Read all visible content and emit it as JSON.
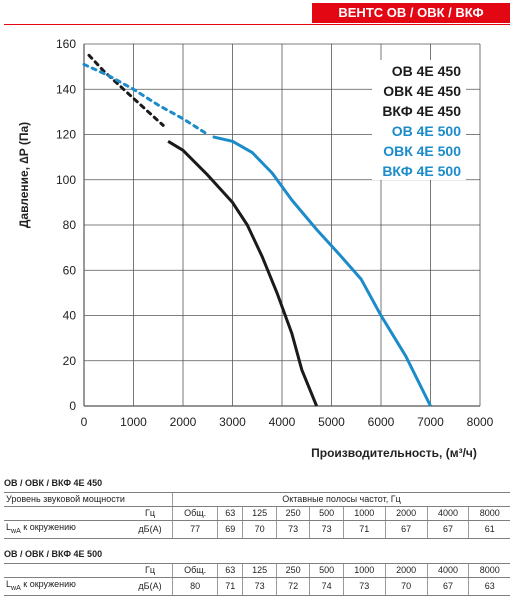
{
  "header": {
    "badge": "ВЕНТС ОВ / ОВК / ВКФ"
  },
  "chart_data": {
    "type": "line",
    "xlabel": "Производительность, (м³/ч)",
    "ylabel": "Давление, ∆P (Па)",
    "xlim": [
      0,
      8000
    ],
    "ylim": [
      0,
      160
    ],
    "x_ticks": [
      "0",
      "1000",
      "2000",
      "3000",
      "4000",
      "5000",
      "6000",
      "7000",
      "8000"
    ],
    "y_ticks": [
      "0",
      "20",
      "40",
      "60",
      "80",
      "100",
      "120",
      "140",
      "160"
    ],
    "grid": true,
    "legend_position": "top-right",
    "legend": [
      {
        "label": "ОВ 4E 450",
        "color": "#1a1a1a"
      },
      {
        "label": "ОВК 4E 450",
        "color": "#1a1a1a"
      },
      {
        "label": "ВКФ 4E 450",
        "color": "#1a1a1a"
      },
      {
        "label": "ОВ 4E 500",
        "color": "#1b8bc9"
      },
      {
        "label": "ОВК 4E 500",
        "color": "#1b8bc9"
      },
      {
        "label": "ВКФ 4E 500",
        "color": "#1b8bc9"
      }
    ],
    "series": [
      {
        "color": "#1a1a1a",
        "dashed": [
          [
            100,
            155
          ],
          [
            400,
            148
          ],
          [
            800,
            140
          ],
          [
            1200,
            132
          ],
          [
            1600,
            124
          ]
        ],
        "solid": [
          [
            1700,
            117
          ],
          [
            2000,
            113
          ],
          [
            2500,
            102
          ],
          [
            3000,
            90
          ],
          [
            3300,
            80
          ],
          [
            3600,
            66
          ],
          [
            3900,
            50
          ],
          [
            4200,
            32
          ],
          [
            4400,
            16
          ],
          [
            4700,
            0
          ]
        ]
      },
      {
        "color": "#1b8bc9",
        "dashed": [
          [
            0,
            151
          ],
          [
            500,
            146
          ],
          [
            1000,
            140
          ],
          [
            1500,
            133
          ],
          [
            2000,
            127
          ],
          [
            2500,
            120
          ]
        ],
        "solid": [
          [
            2600,
            119
          ],
          [
            3000,
            117
          ],
          [
            3400,
            112
          ],
          [
            3800,
            103
          ],
          [
            4200,
            91
          ],
          [
            4700,
            78
          ],
          [
            5200,
            66
          ],
          [
            5600,
            56
          ],
          [
            6000,
            40
          ],
          [
            6500,
            22
          ],
          [
            7000,
            0
          ]
        ]
      }
    ]
  },
  "tables": {
    "t450": {
      "title": "ОВ / ОВК / ВКФ 4E 450",
      "header_row1": [
        "Уровень звуковой мощности",
        "Октавные полосы частот, Гц"
      ],
      "unit_hz": "Гц",
      "freq_headers": [
        "Общ.",
        "63",
        "125",
        "250",
        "500",
        "1000",
        "2000",
        "4000",
        "8000"
      ],
      "row_label_main": "L",
      "row_label_sub": "wA",
      "row_label_rest": " к окружению",
      "row_unit": "дБ(А)",
      "values": [
        "77",
        "69",
        "70",
        "73",
        "73",
        "71",
        "67",
        "67",
        "61"
      ]
    },
    "t500": {
      "title": "ОВ / ОВК / ВКФ 4E 500",
      "unit_hz": "Гц",
      "freq_headers": [
        "Общ.",
        "63",
        "125",
        "250",
        "500",
        "1000",
        "2000",
        "4000",
        "8000"
      ],
      "row_label_main": "L",
      "row_label_sub": "wA",
      "row_label_rest": " к окружению",
      "row_unit": "дБ(А)",
      "values": [
        "80",
        "71",
        "73",
        "72",
        "74",
        "73",
        "70",
        "67",
        "63"
      ]
    }
  }
}
